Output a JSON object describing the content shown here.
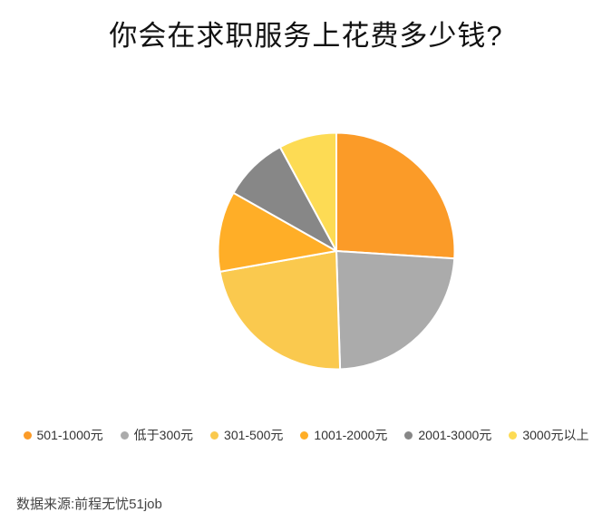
{
  "title": "你会在求职服务上花费多少钱?",
  "source_note": "数据来源:前程无忧51job",
  "background_color": "#ffffff",
  "title_color": "#111111",
  "legend_text_color": "#333333",
  "source_text_color": "#444444",
  "chart_data": {
    "type": "pie",
    "title": "你会在求职服务上花费多少钱?",
    "categories": [
      "501-1000元",
      "低于300元",
      "301-500元",
      "1001-2000元",
      "2001-3000元",
      "3000元以上"
    ],
    "values": [
      26.0,
      23.5,
      22.7,
      11.0,
      8.9,
      7.9
    ],
    "angles_deg": [
      93.6,
      84.6,
      81.7,
      39.6,
      32.0,
      28.5
    ],
    "colors": [
      "#FB9B28",
      "#ABABAB",
      "#FAC94E",
      "#FFAE27",
      "#878787",
      "#FDDB54"
    ],
    "start_angle_deg": 0,
    "direction": "clockwise",
    "slice_border_color": "#FFFFFF",
    "legend_position": "bottom",
    "legend_marker": "circle-dot",
    "source_note": "数据来源:前程无忧51job"
  }
}
